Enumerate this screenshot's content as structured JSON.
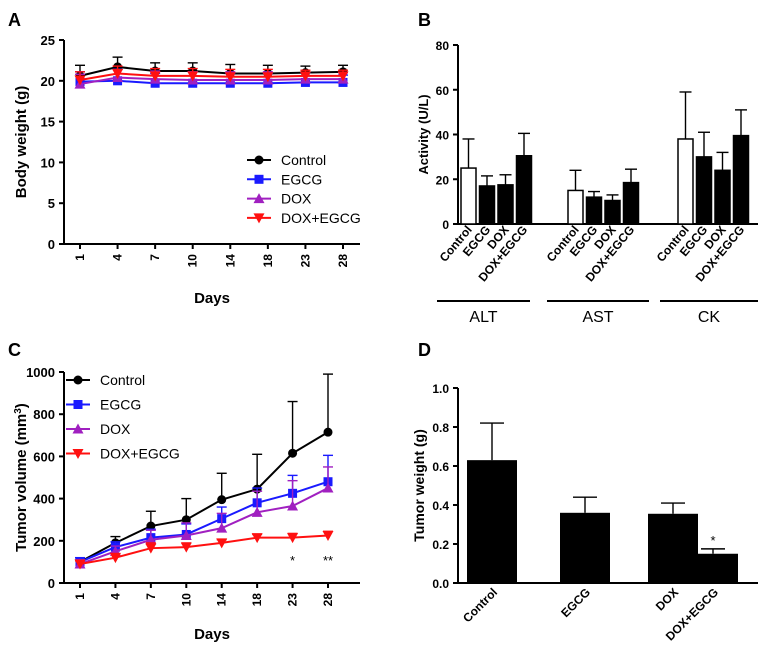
{
  "chart_data": [
    {
      "panel_label": "A",
      "type": "line",
      "title": "",
      "xlabel": "Days",
      "ylabel": "Body weight (g)",
      "categories": [
        "1",
        "4",
        "7",
        "10",
        "14",
        "18",
        "23",
        "28"
      ],
      "ylim": [
        0,
        25
      ],
      "yticks": [
        "0",
        "5",
        "10",
        "15",
        "20",
        "25"
      ],
      "legend": "right",
      "series": [
        {
          "name": "Control",
          "color": "#000000",
          "marker": "circle",
          "values": [
            20.6,
            21.7,
            21.2,
            21.2,
            20.9,
            20.9,
            21.0,
            21.1
          ],
          "errors": [
            1.3,
            1.2,
            1.0,
            1.0,
            1.1,
            1.0,
            0.8,
            0.8
          ]
        },
        {
          "name": "EGCG",
          "color": "#1a1aff",
          "marker": "square",
          "values": [
            19.9,
            20.0,
            19.7,
            19.7,
            19.7,
            19.7,
            19.8,
            19.8
          ],
          "errors": [
            1.2,
            1.4,
            1.2,
            1.4,
            1.2,
            1.2,
            0.8,
            0.9
          ]
        },
        {
          "name": "DOX",
          "color": "#a020c0",
          "marker": "triangle-up",
          "values": [
            19.6,
            20.4,
            20.2,
            20.1,
            20.1,
            20.1,
            20.2,
            20.2
          ],
          "errors": [
            1.2,
            1.0,
            1.0,
            1.0,
            1.0,
            1.0,
            0.8,
            0.8
          ]
        },
        {
          "name": "DOX+EGCG",
          "color": "#ff1010",
          "marker": "triangle-down",
          "values": [
            20.1,
            20.9,
            20.6,
            20.6,
            20.5,
            20.5,
            20.6,
            20.6
          ],
          "errors": [
            1.0,
            0.9,
            0.9,
            0.9,
            0.9,
            0.9,
            0.7,
            0.7
          ]
        }
      ]
    },
    {
      "panel_label": "B",
      "type": "bar",
      "title": "",
      "xlabel": "",
      "ylabel": "Activity (U/L)",
      "ylim": [
        0,
        80
      ],
      "yticks": [
        "0",
        "20",
        "40",
        "60",
        "80"
      ],
      "categories": [
        "Control",
        "EGCG",
        "DOX",
        "DOX+EGCG"
      ],
      "groups": [
        "ALT",
        "AST",
        "CK"
      ],
      "series": [
        {
          "name": "ALT",
          "values": [
            25,
            17,
            17.5,
            30.5
          ],
          "errors": [
            13,
            4.5,
            4.5,
            10
          ]
        },
        {
          "name": "AST",
          "values": [
            15,
            12,
            10.5,
            18.5
          ],
          "errors": [
            9,
            2.5,
            2.5,
            6
          ]
        },
        {
          "name": "CK",
          "values": [
            38,
            30,
            24,
            39.5
          ],
          "errors": [
            21,
            11,
            8,
            11.5
          ]
        }
      ]
    },
    {
      "panel_label": "C",
      "type": "line",
      "title": "",
      "xlabel": "Days",
      "ylabel": "Tumor volume (mm",
      "ylabel_sup": "3",
      "ylabel_close": ")",
      "categories": [
        "1",
        "4",
        "7",
        "10",
        "14",
        "18",
        "23",
        "28"
      ],
      "ylim": [
        0,
        1000
      ],
      "yticks": [
        "0",
        "200",
        "400",
        "600",
        "800",
        "1000"
      ],
      "legend": "top-left",
      "annotations": [
        {
          "category": "23",
          "text": "*"
        },
        {
          "category": "28",
          "text": "**"
        }
      ],
      "series": [
        {
          "name": "Control",
          "color": "#000000",
          "marker": "circle",
          "values": [
            100,
            190,
            270,
            300,
            395,
            445,
            615,
            715
          ],
          "errors": [
            20,
            30,
            70,
            100,
            125,
            165,
            245,
            275
          ]
        },
        {
          "name": "EGCG",
          "color": "#1a1aff",
          "marker": "square",
          "values": [
            100,
            170,
            215,
            230,
            305,
            380,
            425,
            480
          ],
          "errors": [
            20,
            25,
            40,
            50,
            55,
            70,
            85,
            125
          ]
        },
        {
          "name": "DOX",
          "color": "#a020c0",
          "marker": "triangle-up",
          "values": [
            90,
            150,
            205,
            225,
            260,
            335,
            365,
            450
          ],
          "errors": [
            20,
            25,
            45,
            60,
            70,
            100,
            120,
            100
          ]
        },
        {
          "name": "DOX+EGCG",
          "color": "#ff1010",
          "marker": "triangle-down",
          "values": [
            90,
            120,
            165,
            170,
            190,
            215,
            215,
            225
          ],
          "errors": [
            15,
            20,
            25,
            20,
            15,
            15,
            20,
            20
          ]
        }
      ]
    },
    {
      "panel_label": "D",
      "type": "bar",
      "title": "",
      "xlabel": "",
      "ylabel": "Tumor weight (g)",
      "ylim": [
        0,
        1.0
      ],
      "yticks": [
        "0.0",
        "0.2",
        "0.4",
        "0.6",
        "0.8",
        "1.0"
      ],
      "categories": [
        "Control",
        "EGCG",
        "DOX",
        "DOX+EGCG"
      ],
      "values": [
        0.63,
        0.36,
        0.355,
        0.15
      ],
      "errors": [
        0.19,
        0.08,
        0.055,
        0.025
      ],
      "annotations": [
        {
          "category": "DOX+EGCG",
          "text": "*"
        }
      ]
    }
  ]
}
